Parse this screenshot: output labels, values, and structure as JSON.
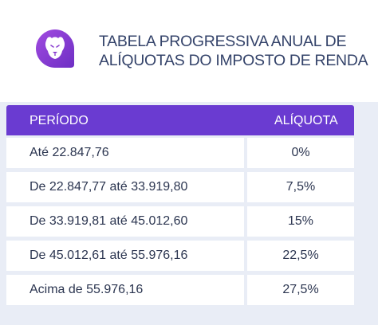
{
  "title": {
    "line1": "TABELA PROGRESSIVA ANUAL DE",
    "line2": "ALÍQUOTAS DO IMPOSTO DE RENDA"
  },
  "logo": {
    "icon": "lion-icon",
    "color": "#8a3fd0"
  },
  "table": {
    "header": {
      "period": "PERÍODO",
      "rate": "ALÍQUOTA"
    },
    "header_color": "#6a3bd1",
    "rows": [
      {
        "period": "Até 22.847,76",
        "rate": "0%"
      },
      {
        "period": "De 22.847,77 até 33.919,80",
        "rate": "7,5%"
      },
      {
        "period": "De 33.919,81 até 45.012,60",
        "rate": "15%"
      },
      {
        "period": "De 45.012,61 até 55.976,16",
        "rate": "22,5%"
      },
      {
        "period": "Acima de 55.976,16",
        "rate": "27,5%"
      }
    ]
  }
}
